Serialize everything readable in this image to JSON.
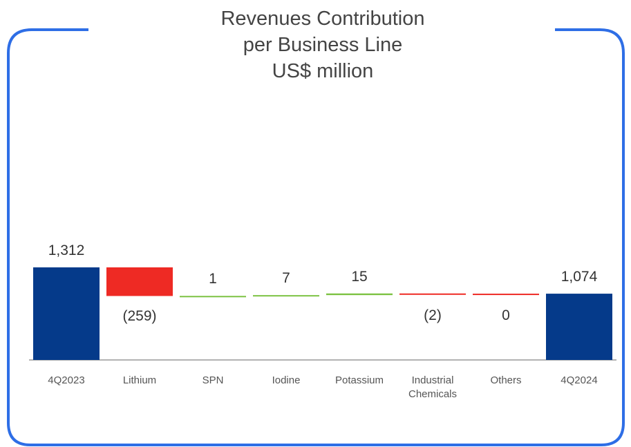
{
  "chart_data": {
    "type": "waterfall",
    "title": "Revenues Contribution per Business Line",
    "subtitle": "US$ million",
    "categories": [
      "4Q2023",
      "Lithium",
      "SPN",
      "Iodine",
      "Potassium",
      "Industrial Chemicals",
      "Others",
      "4Q2024"
    ],
    "values": [
      1312,
      -259,
      1,
      7,
      15,
      -2,
      0,
      1074
    ],
    "value_labels": [
      "1,312",
      "(259)",
      "1",
      "7",
      "15",
      "(2)",
      "0",
      "1,074"
    ],
    "colors": [
      "#053a8a",
      "#ee2a24",
      "#7cc242",
      "#7cc242",
      "#7cc242",
      "#ee2a24",
      "#ee2a24",
      "#053a8a"
    ]
  }
}
